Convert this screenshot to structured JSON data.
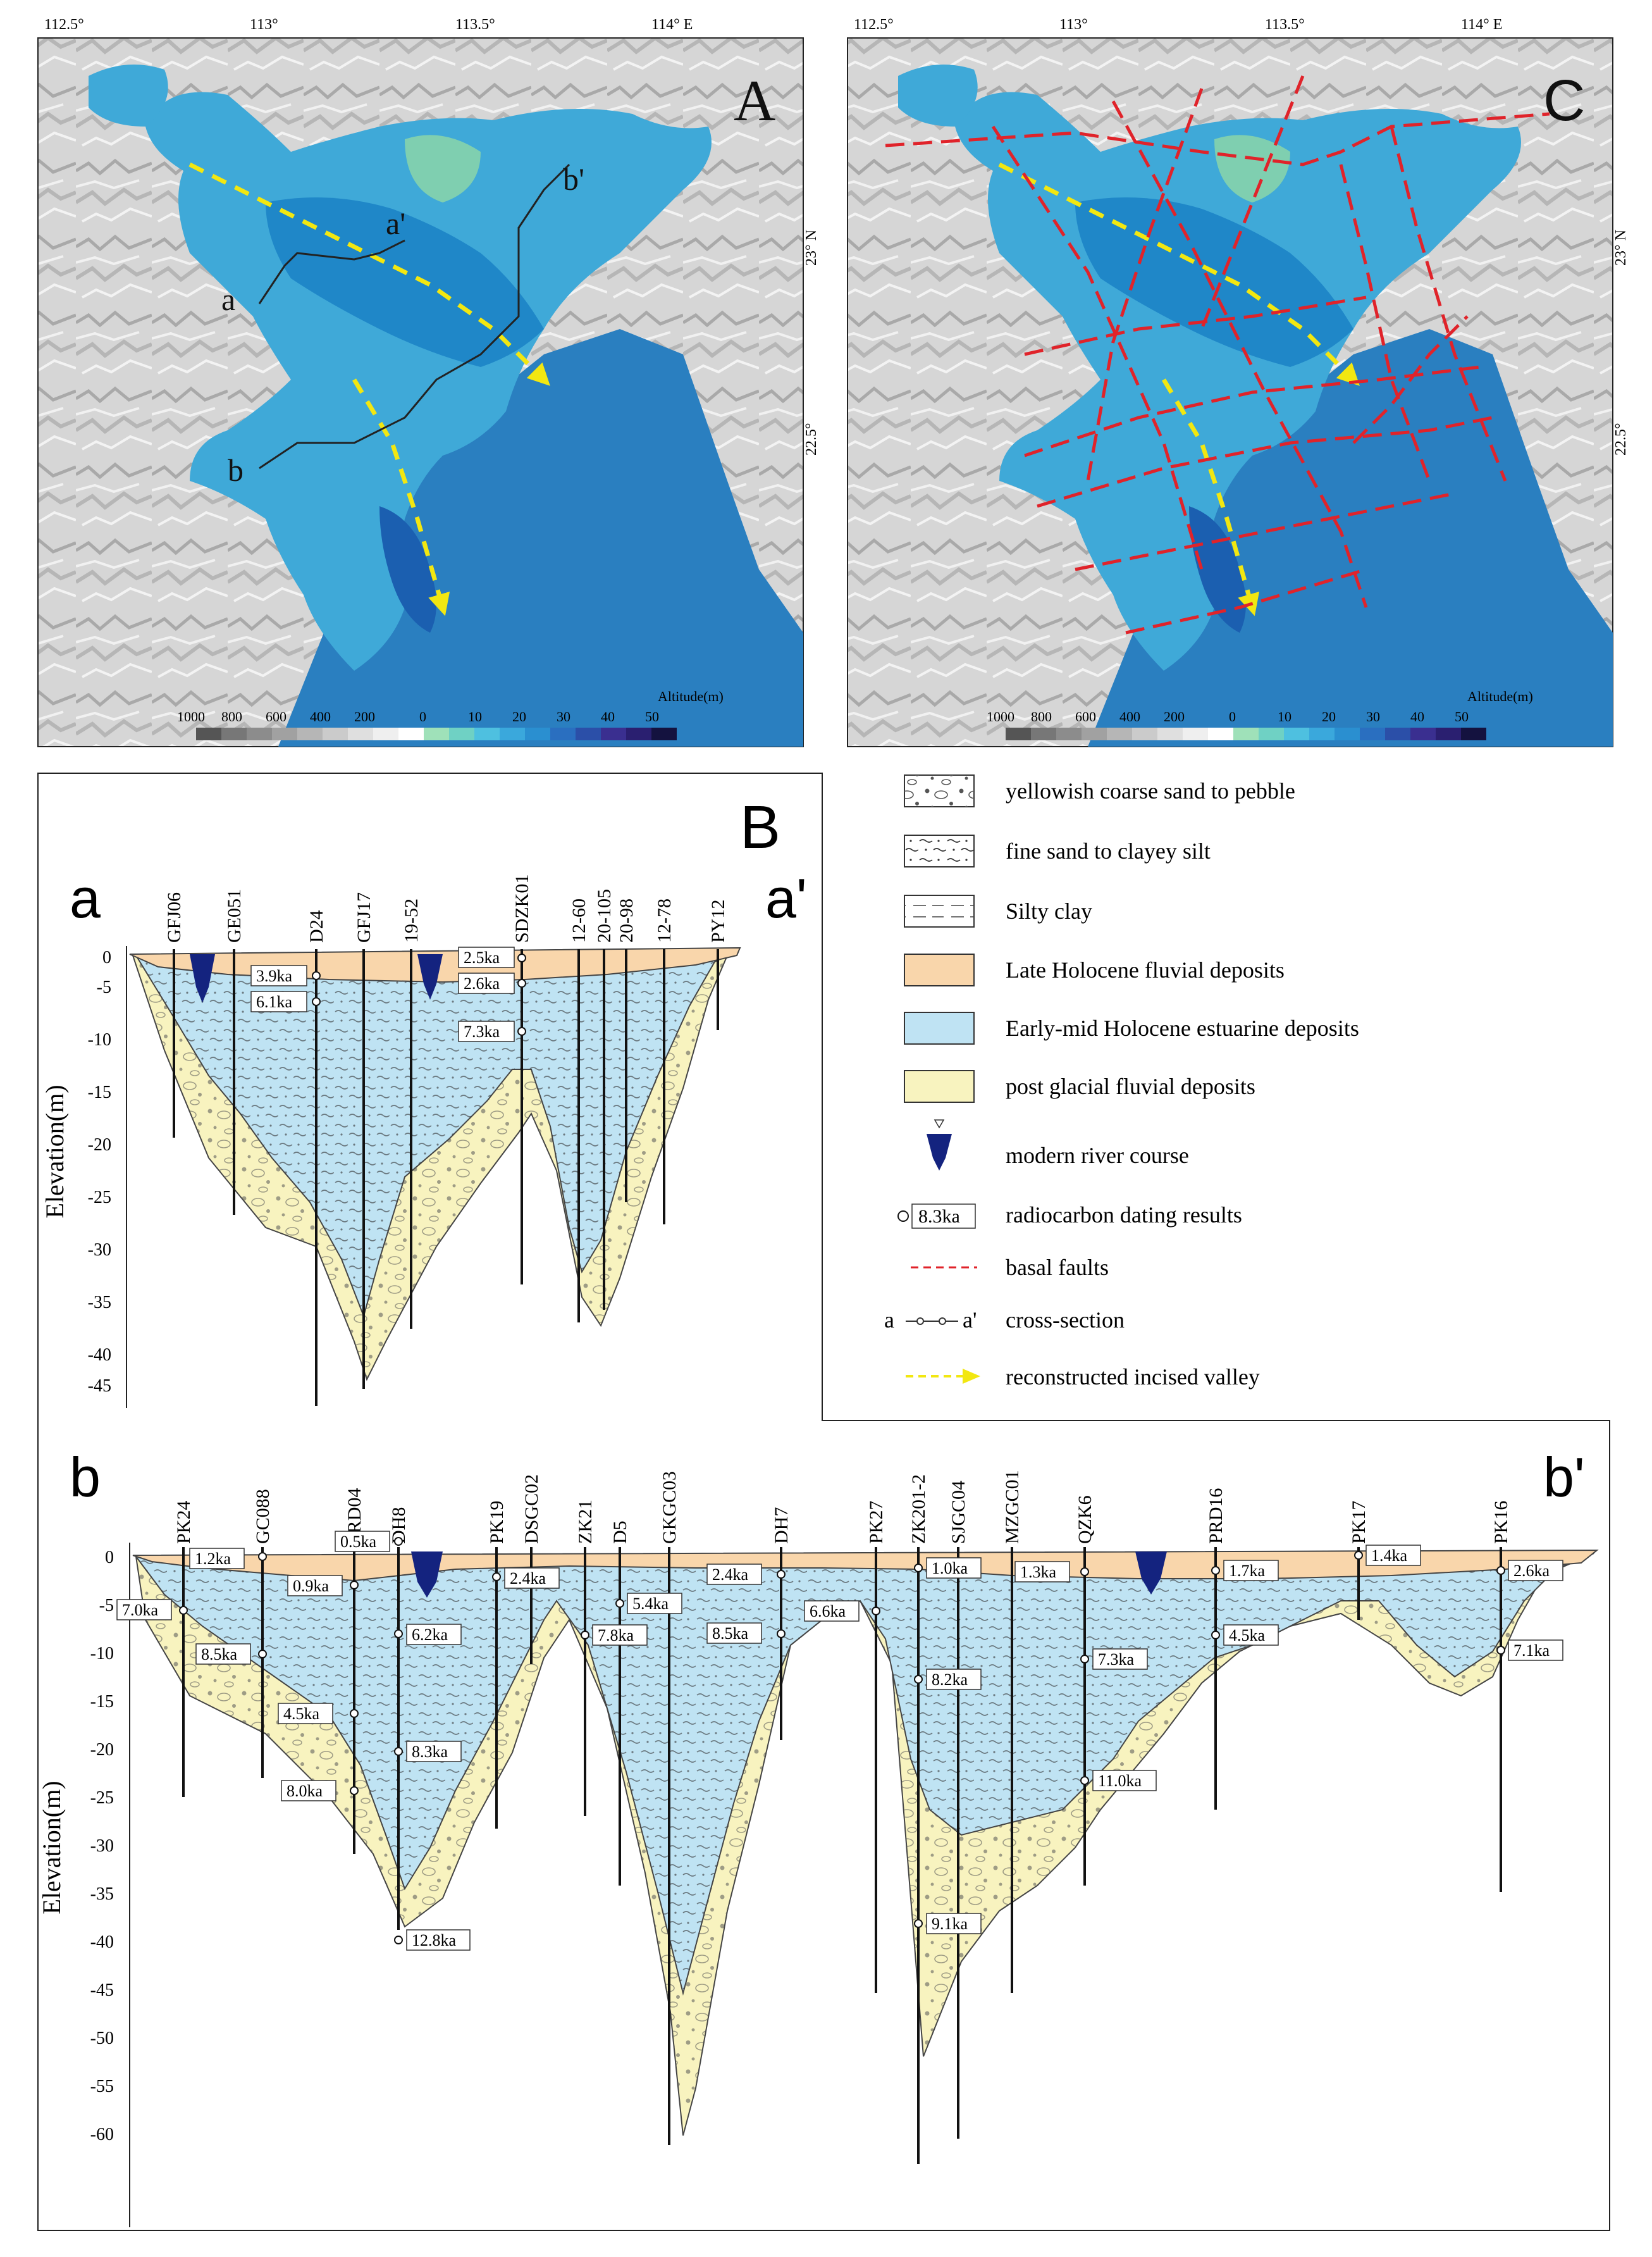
{
  "map_a": {
    "letter": "A",
    "lon_ticks": [
      {
        "label": "112.5°"
      },
      {
        "label": "113°"
      },
      {
        "label": "113.5°"
      },
      {
        "label": "114° E"
      }
    ],
    "lat_ticks": [
      {
        "label": "23° N"
      },
      {
        "label": "22.5°"
      }
    ],
    "section_labels": {
      "a": "a",
      "a_prime": "a'",
      "b": "b",
      "b_prime": "b'"
    },
    "scale_title": "Altitude(m)",
    "scale_ticks": [
      "1000",
      "800",
      "600",
      "400",
      "200",
      "0",
      "10",
      "20",
      "30",
      "40",
      "50"
    ]
  },
  "map_c": {
    "letter": "C",
    "lon_ticks": [
      {
        "label": "112.5°"
      },
      {
        "label": "113°"
      },
      {
        "label": "113.5°"
      },
      {
        "label": "114° E"
      }
    ],
    "lat_ticks": [
      {
        "label": "23° N"
      },
      {
        "label": "22.5°"
      }
    ],
    "scale_title": "Altitude(m)",
    "scale_ticks": [
      "1000",
      "800",
      "600",
      "400",
      "200",
      "0",
      "10",
      "20",
      "30",
      "40",
      "50"
    ]
  },
  "section_panel": {
    "letter": "B",
    "a": {
      "left": "a",
      "right": "a'",
      "ylabel": "Elevation(m)",
      "yticks": [
        "0",
        "-5",
        "-10",
        "-15",
        "-20",
        "-25",
        "-30",
        "-35",
        "-40",
        "-45"
      ],
      "wells": [
        "GFJ06",
        "GE051",
        "D24",
        "GFJ17",
        "19-52",
        "SDZK01",
        "12-60",
        "20-105",
        "20-98",
        "12-78",
        "PY12"
      ],
      "dates": [
        "2.5ka",
        "2.6ka",
        "3.9ka",
        "6.1ka",
        "7.3ka"
      ]
    },
    "b": {
      "left": "b",
      "right": "b'",
      "ylabel": "Elevation(m)",
      "yticks": [
        "0",
        "-5",
        "-10",
        "-15",
        "-20",
        "-25",
        "-30",
        "-35",
        "-40",
        "-45",
        "-50",
        "-55",
        "-60"
      ],
      "wells": [
        "PK24",
        "GC088",
        "PRD04",
        "DH8",
        "PK19",
        "DSGC02",
        "ZK21",
        "D5",
        "GKGC03",
        "DH7",
        "PK27",
        "ZK201-2",
        "SJGC04",
        "MZGC01",
        "QZK6",
        "PRD16",
        "PK17",
        "PK16"
      ],
      "dates": [
        "0.5ka",
        "1.2ka",
        "0.9ka",
        "7.0ka",
        "2.4ka",
        "8.5ka",
        "6.2ka",
        "5.4ka",
        "7.8ka",
        "2.4ka",
        "8.5ka",
        "6.6ka",
        "1.0ka",
        "1.3ka",
        "1.7ka",
        "1.4ka",
        "2.6ka",
        "4.5ka",
        "7.3ka",
        "4.5ka",
        "7.1ka",
        "8.2ka",
        "8.3ka",
        "8.0ka",
        "11.0ka",
        "9.1ka",
        "12.8ka"
      ]
    }
  },
  "legend": {
    "items": [
      {
        "label": "yellowish coarse sand to pebble"
      },
      {
        "label": "fine sand to clayey silt"
      },
      {
        "label": "Silty clay"
      },
      {
        "label": "Late Holocene fluvial deposits"
      },
      {
        "label": "Early-mid Holocene estuarine deposits"
      },
      {
        "label": "post glacial fluvial deposits"
      },
      {
        "label": "modern river course"
      },
      {
        "label": "radiocarbon dating results"
      },
      {
        "label": "basal faults"
      },
      {
        "label": "cross-section"
      },
      {
        "label": "reconstructed incised valley"
      }
    ],
    "dating_sample": "8.3ka",
    "cs_a": "a",
    "cs_a_prime": "a'"
  },
  "colors": {
    "late_holocene": "#f9d6ab",
    "estuarine": "#bfe3f3",
    "post_glacial": "#f8f3bf",
    "river": "#14237f",
    "fault": "#e0232a",
    "valley": "#f2e711",
    "sea": "#2a7fc0",
    "land": "#d9d9d9"
  }
}
